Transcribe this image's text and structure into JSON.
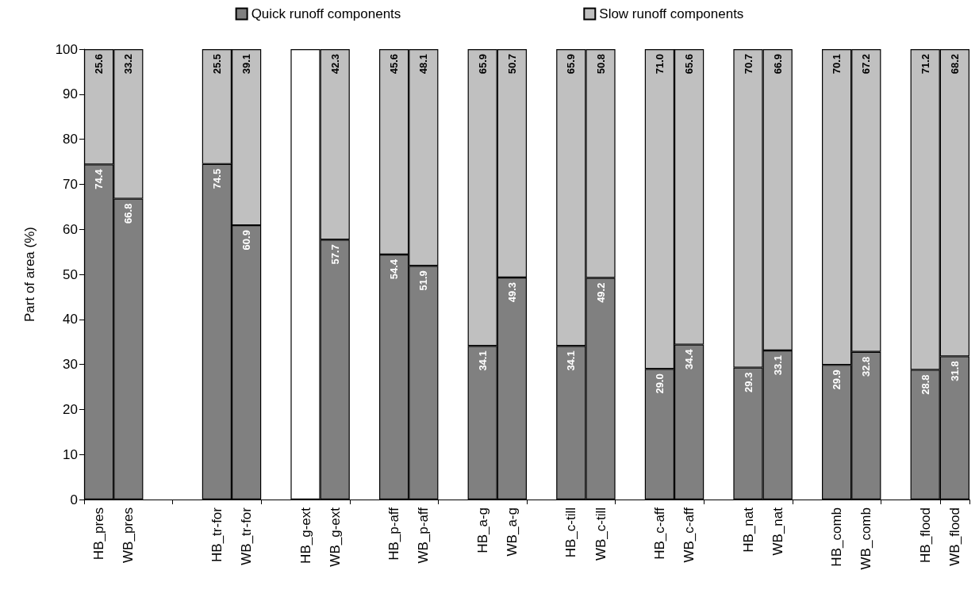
{
  "chart_data": {
    "type": "bar",
    "stacked": true,
    "ylabel": "Part of area (%)",
    "categories": [
      "HB_pres",
      "WB_pres",
      null,
      null,
      "HB_tr-for",
      "WB_tr-for",
      null,
      "HB_g-ext",
      "WB_g-ext",
      null,
      "HB_p-aff",
      "WB_p-aff",
      null,
      "HB_a-g",
      "WB_a-g",
      null,
      "HB_c-till",
      "WB_c-till",
      null,
      "HB_c-aff",
      "WB_c-aff",
      null,
      "HB_nat",
      "WB_nat",
      null,
      "HB_comb",
      "WB_comb",
      null,
      "HB_flood",
      "WB_flood"
    ],
    "series": [
      {
        "name": "Quick runoff components",
        "color": "#808080",
        "values": [
          74.4,
          66.8,
          null,
          null,
          74.5,
          60.9,
          null,
          null,
          57.7,
          null,
          54.4,
          51.9,
          null,
          34.1,
          49.3,
          null,
          34.1,
          49.2,
          null,
          29.0,
          34.4,
          null,
          29.3,
          33.1,
          null,
          29.9,
          32.8,
          null,
          28.8,
          31.8
        ],
        "value_labels": [
          "74.4",
          "66.8",
          null,
          null,
          "74.5",
          "60.9",
          null,
          null,
          "57.7",
          null,
          "54.4",
          "51.9",
          null,
          "34.1",
          "49.3",
          null,
          "34.1",
          "49.2",
          null,
          "29.0",
          "34.4",
          null,
          "29.3",
          "33.1",
          null,
          "29.9",
          "32.8",
          null,
          "28.8",
          "31.8"
        ]
      },
      {
        "name": "Slow runoff components",
        "color": "#c0c0c0",
        "values": [
          25.6,
          33.2,
          null,
          null,
          25.5,
          39.1,
          null,
          null,
          42.3,
          null,
          45.6,
          48.1,
          null,
          65.9,
          50.7,
          null,
          65.9,
          50.8,
          null,
          71.0,
          65.6,
          null,
          70.7,
          66.9,
          null,
          70.1,
          67.2,
          null,
          71.2,
          68.2
        ],
        "value_labels": [
          "25.6",
          "33.2",
          null,
          null,
          "25.5",
          "39.1",
          null,
          null,
          "42.3",
          null,
          "45.6",
          "48.1",
          null,
          "65.9",
          "50.7",
          null,
          "65.9",
          "50.8",
          null,
          "71.0",
          "65.6",
          null,
          "70.7",
          "66.9",
          null,
          "70.1",
          "67.2",
          null,
          "71.2",
          "68.2"
        ]
      },
      {
        "color": "#ffffff",
        "values": [
          null,
          null,
          null,
          null,
          null,
          null,
          null,
          100,
          null,
          null,
          null,
          null,
          null,
          null,
          null,
          null,
          null,
          null,
          null,
          null,
          null,
          null,
          null,
          null,
          null,
          null,
          null,
          null,
          null,
          null
        ]
      }
    ],
    "ylim": [
      0,
      100
    ],
    "yticks": [
      0,
      10,
      20,
      30,
      40,
      50,
      60,
      70,
      80,
      90,
      100
    ],
    "grid": false,
    "legend": "top"
  }
}
